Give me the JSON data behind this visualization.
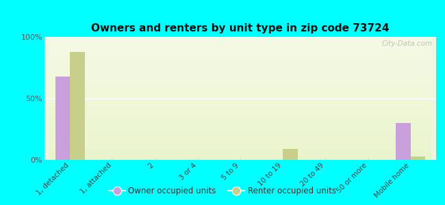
{
  "title": "Owners and renters by unit type in zip code 73724",
  "categories": [
    "1, detached",
    "1, attached",
    "2",
    "3 or 4",
    "5 to 9",
    "10 to 19",
    "20 to 49",
    "50 or more",
    "Mobile home"
  ],
  "owner_values": [
    68,
    0,
    0,
    0,
    0,
    0,
    0,
    0,
    30
  ],
  "renter_values": [
    88,
    0,
    0,
    0,
    0,
    9,
    0,
    0,
    3
  ],
  "owner_color": "#c9a0dc",
  "renter_color": "#c8cf8a",
  "background_color": "#00ffff",
  "plot_bg_color": "#eef5e0",
  "ylim": [
    0,
    100
  ],
  "yticks": [
    0,
    50,
    100
  ],
  "ytick_labels": [
    "0%",
    "50%",
    "100%"
  ],
  "bar_width": 0.35,
  "legend_owner": "Owner occupied units",
  "legend_renter": "Renter occupied units",
  "watermark": "City-Data.com"
}
